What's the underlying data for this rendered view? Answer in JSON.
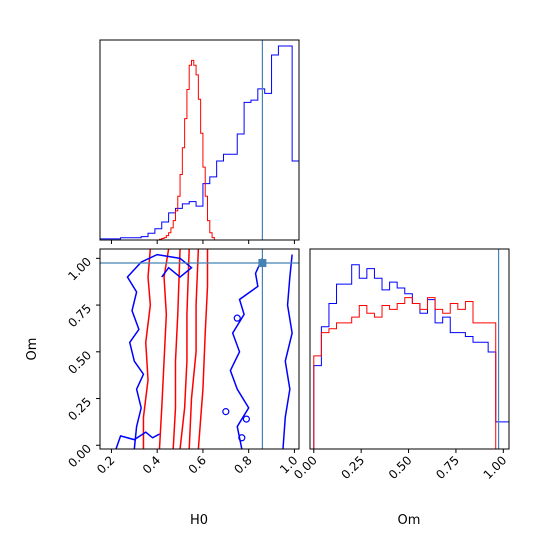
{
  "chart_data": {
    "type": "corner",
    "parameters": [
      "H0",
      "Om"
    ],
    "truth": {
      "H0": 0.86,
      "Om": 0.975
    },
    "colors": {
      "series_a": "#0000ff",
      "series_b": "#ff0000",
      "truth": "#4682b4"
    },
    "panels": [
      {
        "id": "hist-H0",
        "type": "histogram-step",
        "xlim": [
          0.15,
          1.02
        ],
        "x_bin_edges": [
          0.15,
          0.18,
          0.21,
          0.24,
          0.27,
          0.3,
          0.33,
          0.36,
          0.39,
          0.42,
          0.45,
          0.48,
          0.51,
          0.54,
          0.57,
          0.6,
          0.63,
          0.66,
          0.69,
          0.72,
          0.75,
          0.78,
          0.81,
          0.84,
          0.87,
          0.9,
          0.93,
          0.96,
          0.99,
          1.02
        ],
        "series": [
          {
            "color": "blue",
            "values": [
              0.5,
              0.5,
              0.5,
              1,
              1,
              1,
              1.5,
              3,
              5,
              8,
              12,
              14,
              16,
              17,
              15,
              25,
              28,
              35,
              38,
              38,
              47,
              61,
              62,
              67,
              65,
              82,
              86,
              86,
              35
            ]
          },
          {
            "color": "red",
            "values": [
              0,
              0,
              0,
              0,
              0,
              0,
              0,
              0,
              0,
              0,
              0,
              0,
              0,
              0,
              0,
              0,
              0,
              0,
              0,
              0,
              0,
              0,
              0,
              0,
              0,
              0,
              0,
              0,
              0
            ]
          }
        ],
        "red_fine": {
          "x_start": 0.15,
          "bin": 0.01,
          "values": [
            0,
            0,
            0,
            0,
            0,
            0,
            0,
            0,
            0,
            0,
            0,
            0,
            0,
            0,
            0,
            0,
            0,
            0,
            0,
            0,
            0,
            0,
            0,
            0,
            0,
            0,
            0.3,
            0.6,
            1,
            1.8,
            3,
            5,
            8,
            12,
            18,
            27,
            38,
            50,
            62,
            72,
            74,
            72,
            68,
            58,
            44,
            30,
            18,
            8,
            3,
            1,
            0,
            0,
            0,
            0,
            0,
            0,
            0,
            0,
            0,
            0,
            0,
            0,
            0,
            0,
            0,
            0,
            0,
            0,
            0,
            0,
            0,
            0,
            0,
            0,
            0,
            0,
            0,
            0,
            0,
            0,
            0,
            0,
            0,
            0,
            0,
            0,
            0
          ]
        }
      },
      {
        "id": "contour-H0-Om",
        "type": "contour",
        "xlim": [
          0.15,
          1.02
        ],
        "ylim": [
          -0.02,
          1.05
        ],
        "series": [
          {
            "color": "blue",
            "description_levels": 2
          },
          {
            "color": "red",
            "description_levels": 3
          }
        ]
      },
      {
        "id": "hist-Om",
        "type": "histogram-step",
        "xlim": [
          -0.02,
          1.03
        ],
        "x_bin_edges": [
          0.0,
          0.04,
          0.08,
          0.12,
          0.16,
          0.2,
          0.24,
          0.28,
          0.32,
          0.36,
          0.4,
          0.44,
          0.48,
          0.52,
          0.56,
          0.6,
          0.64,
          0.68,
          0.72,
          0.76,
          0.8,
          0.84,
          0.88,
          0.92,
          0.96,
          1.0,
          1.03
        ],
        "series": [
          {
            "color": "blue",
            "values": [
              43,
              63,
              75,
              85,
              85,
              95,
              88,
              93,
              88,
              82,
              86,
              83,
              80,
              75,
              70,
              77,
              65,
              68,
              60,
              60,
              58,
              55,
              55,
              50,
              14,
              14
            ]
          },
          {
            "color": "red",
            "values": [
              48,
              60,
              62,
              65,
              65,
              68,
              74,
              70,
              68,
              74,
              72,
              75,
              78,
              75,
              72,
              78,
              72,
              70,
              75,
              72,
              76,
              65,
              65,
              65,
              0,
              0
            ]
          }
        ]
      }
    ],
    "axes": {
      "x_H0": {
        "label": "H0",
        "ticks": [
          0.2,
          0.4,
          0.6,
          0.8,
          1.0
        ],
        "tick_labels": [
          "0.2",
          "0.4",
          "0.6",
          "0.8",
          "1.0"
        ]
      },
      "y_Om": {
        "label": "Om",
        "ticks": [
          0.0,
          0.25,
          0.5,
          0.75,
          1.0
        ],
        "tick_labels": [
          "0.00",
          "0.25",
          "0.50",
          "0.75",
          "1.00"
        ]
      },
      "x_Om": {
        "label": "Om",
        "ticks": [
          0.0,
          0.25,
          0.5,
          0.75,
          1.0
        ],
        "tick_labels": [
          "0.00",
          "0.25",
          "0.50",
          "0.75",
          "1.00"
        ]
      }
    }
  }
}
